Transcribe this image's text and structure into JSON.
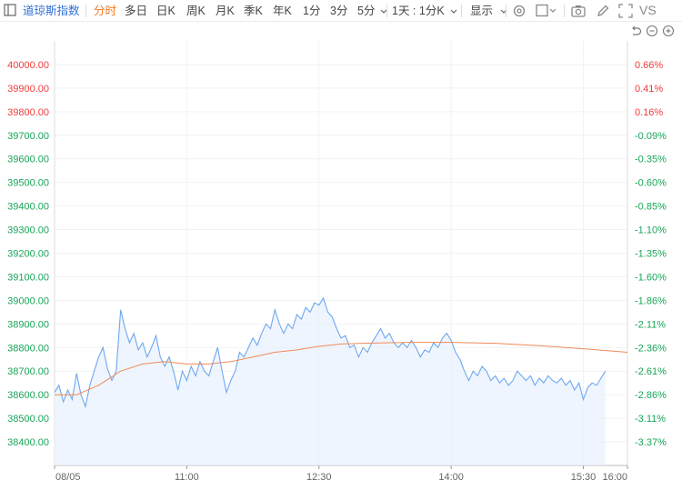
{
  "toolbar": {
    "title": "道琼斯指数",
    "periods": [
      "分时",
      "多日",
      "日K",
      "周K",
      "月K",
      "季K",
      "年K",
      "1分",
      "3分",
      "5分"
    ],
    "range": "1天 : 1分K",
    "display": "显示",
    "compare": "VS",
    "colors": {
      "active": "#f07820",
      "title": "#2f6fd6"
    }
  },
  "icons": [
    "sidebar-toggle-icon",
    "chevron-down-icon",
    "settings-icon",
    "square-icon",
    "camera-icon",
    "pencil-icon",
    "fullscreen-icon",
    "undo-icon",
    "zoom-out-icon",
    "zoom-in-icon"
  ],
  "chart_data": {
    "type": "line",
    "ylim": [
      38300,
      40100
    ],
    "y_ticks": [
      {
        "value": 40000,
        "label": "40000.00",
        "pct": "0.66%"
      },
      {
        "value": 39900,
        "label": "39900.00",
        "pct": "0.41%"
      },
      {
        "value": 39800,
        "label": "39800.00",
        "pct": "0.16%"
      },
      {
        "value": 39700,
        "label": "39700.00",
        "pct": "-0.09%"
      },
      {
        "value": 39600,
        "label": "39600.00",
        "pct": "-0.35%"
      },
      {
        "value": 39500,
        "label": "39500.00",
        "pct": "-0.60%"
      },
      {
        "value": 39400,
        "label": "39400.00",
        "pct": "-0.85%"
      },
      {
        "value": 39300,
        "label": "39300.00",
        "pct": "-1.10%"
      },
      {
        "value": 39200,
        "label": "39200.00",
        "pct": "-1.35%"
      },
      {
        "value": 39100,
        "label": "39100.00",
        "pct": "-1.60%"
      },
      {
        "value": 39000,
        "label": "39000.00",
        "pct": "-1.86%"
      },
      {
        "value": 38900,
        "label": "38900.00",
        "pct": "-2.11%"
      },
      {
        "value": 38800,
        "label": "38800.00",
        "pct": "-2.36%"
      },
      {
        "value": 38700,
        "label": "38700.00",
        "pct": "-2.61%"
      },
      {
        "value": 38600,
        "label": "38600.00",
        "pct": "-2.86%"
      },
      {
        "value": 38500,
        "label": "38500.00",
        "pct": "-3.11%"
      },
      {
        "value": 38400,
        "label": "38400.00",
        "pct": "-3.37%"
      }
    ],
    "x_ticks": [
      {
        "time": "09:30",
        "label": "08/05"
      },
      {
        "time": "11:00",
        "label": "11:00"
      },
      {
        "time": "12:30",
        "label": "12:30"
      },
      {
        "time": "14:00",
        "label": "14:00"
      },
      {
        "time": "15:30",
        "label": "15:30"
      },
      {
        "time": "16:00",
        "label": "16:00"
      }
    ],
    "colors": {
      "price": "#6ea8f0",
      "average": "#f08a5a",
      "positive_axis": "#f03c3c",
      "negative_axis": "#18a558",
      "fill": "#e8f1fd"
    },
    "series": [
      {
        "key": "price",
        "points": [
          [
            "09:30",
            38610
          ],
          [
            "09:33",
            38640
          ],
          [
            "09:36",
            38570
          ],
          [
            "09:39",
            38620
          ],
          [
            "09:42",
            38580
          ],
          [
            "09:45",
            38690
          ],
          [
            "09:48",
            38600
          ],
          [
            "09:51",
            38550
          ],
          [
            "09:54",
            38640
          ],
          [
            "09:57",
            38700
          ],
          [
            "10:00",
            38760
          ],
          [
            "10:03",
            38800
          ],
          [
            "10:06",
            38710
          ],
          [
            "10:09",
            38660
          ],
          [
            "10:12",
            38700
          ],
          [
            "10:15",
            38960
          ],
          [
            "10:18",
            38880
          ],
          [
            "10:21",
            38820
          ],
          [
            "10:24",
            38860
          ],
          [
            "10:27",
            38790
          ],
          [
            "10:30",
            38820
          ],
          [
            "10:33",
            38760
          ],
          [
            "10:36",
            38800
          ],
          [
            "10:39",
            38850
          ],
          [
            "10:42",
            38760
          ],
          [
            "10:45",
            38720
          ],
          [
            "10:48",
            38760
          ],
          [
            "10:51",
            38700
          ],
          [
            "10:54",
            38620
          ],
          [
            "10:57",
            38700
          ],
          [
            "11:00",
            38660
          ],
          [
            "11:03",
            38720
          ],
          [
            "11:06",
            38680
          ],
          [
            "11:09",
            38740
          ],
          [
            "11:12",
            38700
          ],
          [
            "11:15",
            38680
          ],
          [
            "11:18",
            38740
          ],
          [
            "11:21",
            38800
          ],
          [
            "11:24",
            38700
          ],
          [
            "11:27",
            38610
          ],
          [
            "11:30",
            38660
          ],
          [
            "11:33",
            38700
          ],
          [
            "11:36",
            38780
          ],
          [
            "11:39",
            38760
          ],
          [
            "11:42",
            38800
          ],
          [
            "11:45",
            38840
          ],
          [
            "11:48",
            38810
          ],
          [
            "11:51",
            38860
          ],
          [
            "11:54",
            38900
          ],
          [
            "11:57",
            38880
          ],
          [
            "12:00",
            38960
          ],
          [
            "12:03",
            38900
          ],
          [
            "12:06",
            38860
          ],
          [
            "12:09",
            38900
          ],
          [
            "12:12",
            38880
          ],
          [
            "12:15",
            38940
          ],
          [
            "12:18",
            38920
          ],
          [
            "12:21",
            38970
          ],
          [
            "12:24",
            38950
          ],
          [
            "12:27",
            38990
          ],
          [
            "12:30",
            38980
          ],
          [
            "12:33",
            39010
          ],
          [
            "12:36",
            38950
          ],
          [
            "12:39",
            38930
          ],
          [
            "12:42",
            38880
          ],
          [
            "12:45",
            38840
          ],
          [
            "12:48",
            38850
          ],
          [
            "12:51",
            38800
          ],
          [
            "12:54",
            38810
          ],
          [
            "12:57",
            38760
          ],
          [
            "13:00",
            38800
          ],
          [
            "13:03",
            38780
          ],
          [
            "13:06",
            38820
          ],
          [
            "13:09",
            38850
          ],
          [
            "13:12",
            38880
          ],
          [
            "13:15",
            38840
          ],
          [
            "13:18",
            38860
          ],
          [
            "13:21",
            38820
          ],
          [
            "13:24",
            38800
          ],
          [
            "13:27",
            38820
          ],
          [
            "13:30",
            38800
          ],
          [
            "13:33",
            38830
          ],
          [
            "13:36",
            38800
          ],
          [
            "13:39",
            38760
          ],
          [
            "13:42",
            38790
          ],
          [
            "13:45",
            38780
          ],
          [
            "13:48",
            38820
          ],
          [
            "13:51",
            38800
          ],
          [
            "13:54",
            38840
          ],
          [
            "13:57",
            38860
          ],
          [
            "14:00",
            38830
          ],
          [
            "14:03",
            38780
          ],
          [
            "14:06",
            38750
          ],
          [
            "14:09",
            38700
          ],
          [
            "14:12",
            38660
          ],
          [
            "14:15",
            38700
          ],
          [
            "14:18",
            38680
          ],
          [
            "14:21",
            38720
          ],
          [
            "14:24",
            38700
          ],
          [
            "14:27",
            38660
          ],
          [
            "14:30",
            38680
          ],
          [
            "14:33",
            38650
          ],
          [
            "14:36",
            38670
          ],
          [
            "14:39",
            38640
          ],
          [
            "14:42",
            38660
          ],
          [
            "14:45",
            38700
          ],
          [
            "14:48",
            38680
          ],
          [
            "14:51",
            38660
          ],
          [
            "14:54",
            38680
          ],
          [
            "14:57",
            38640
          ],
          [
            "15:00",
            38670
          ],
          [
            "15:03",
            38650
          ],
          [
            "15:06",
            38680
          ],
          [
            "15:09",
            38660
          ],
          [
            "15:12",
            38650
          ],
          [
            "15:15",
            38670
          ],
          [
            "15:18",
            38640
          ],
          [
            "15:21",
            38660
          ],
          [
            "15:24",
            38620
          ],
          [
            "15:27",
            38650
          ],
          [
            "15:30",
            38580
          ],
          [
            "15:33",
            38630
          ],
          [
            "15:36",
            38650
          ],
          [
            "15:39",
            38640
          ],
          [
            "15:42",
            38670
          ],
          [
            "15:45",
            38700
          ]
        ]
      },
      {
        "key": "average",
        "points": [
          [
            "09:30",
            38600
          ],
          [
            "09:45",
            38600
          ],
          [
            "10:00",
            38640
          ],
          [
            "10:15",
            38700
          ],
          [
            "10:30",
            38730
          ],
          [
            "10:45",
            38740
          ],
          [
            "11:00",
            38730
          ],
          [
            "11:15",
            38730
          ],
          [
            "11:30",
            38740
          ],
          [
            "11:45",
            38760
          ],
          [
            "12:00",
            38780
          ],
          [
            "12:15",
            38790
          ],
          [
            "12:30",
            38805
          ],
          [
            "12:45",
            38815
          ],
          [
            "13:00",
            38818
          ],
          [
            "13:30",
            38822
          ],
          [
            "14:00",
            38822
          ],
          [
            "14:30",
            38818
          ],
          [
            "15:00",
            38808
          ],
          [
            "15:30",
            38795
          ],
          [
            "16:00",
            38780
          ]
        ]
      }
    ]
  }
}
